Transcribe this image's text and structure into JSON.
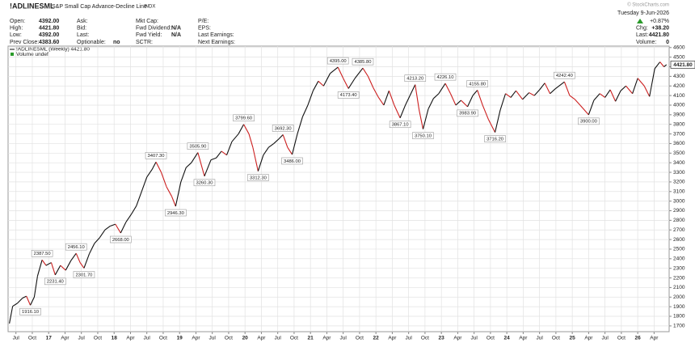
{
  "chart_data": {
    "type": "line",
    "symbol": "!ADLINESML",
    "title": "S&P Small Cap Advance-Decline Line",
    "exchange": "INDX",
    "watermark": "© StockCharts.com",
    "date": "Tuesday  9-Jun-2026",
    "change_pct": "+0.87%",
    "quote_columns": [
      [
        {
          "label": "Open:",
          "value": "4392.00"
        },
        {
          "label": "High:",
          "value": "4421.80"
        },
        {
          "label": "Low:",
          "value": "4392.00"
        },
        {
          "label": "Prev Close:",
          "value": "4383.60"
        }
      ],
      [
        {
          "label": "Ask:"
        },
        {
          "label": "Bid:"
        },
        {
          "label": "Last:"
        },
        {
          "label": "Optionable:",
          "value": "no"
        }
      ],
      [
        {
          "label": "Mkt Cap:"
        },
        {
          "label": "Fwd Dividend:",
          "value": "N/A"
        },
        {
          "label": "Fwd Yield:",
          "value": "N/A"
        },
        {
          "label": "SCTR:"
        }
      ],
      [
        {
          "label": "P/E:"
        },
        {
          "label": "EPS:"
        },
        {
          "label": "Last Earnings:"
        },
        {
          "label": "Next Earnings:"
        }
      ]
    ],
    "summary": [
      {
        "label": "Chg:",
        "value": "+38.20"
      },
      {
        "label": "Last:",
        "value": "4421.80"
      },
      {
        "label": "Volume:",
        "value": "0"
      }
    ],
    "volume_legend": "Volume undef",
    "last_tag": "4421.80",
    "xlim": [
      2016.38,
      2026.48
    ],
    "ylim": [
      1640,
      4615
    ],
    "grid": true,
    "xticks": [
      {
        "value": 2016.5,
        "label": "Jul"
      },
      {
        "value": 2016.75,
        "label": "Oct"
      },
      {
        "value": 2017,
        "label": "17"
      },
      {
        "value": 2017.25,
        "label": "Apr"
      },
      {
        "value": 2017.5,
        "label": "Jul"
      },
      {
        "value": 2017.75,
        "label": "Oct"
      },
      {
        "value": 2018,
        "label": "18"
      },
      {
        "value": 2018.25,
        "label": "Apr"
      },
      {
        "value": 2018.5,
        "label": "Jul"
      },
      {
        "value": 2018.75,
        "label": "Oct"
      },
      {
        "value": 2019,
        "label": "19"
      },
      {
        "value": 2019.25,
        "label": "Apr"
      },
      {
        "value": 2019.5,
        "label": "Jul"
      },
      {
        "value": 2019.75,
        "label": "Oct"
      },
      {
        "value": 2020,
        "label": "20"
      },
      {
        "value": 2020.25,
        "label": "Apr"
      },
      {
        "value": 2020.5,
        "label": "Jul"
      },
      {
        "value": 2020.75,
        "label": "Oct"
      },
      {
        "value": 2021,
        "label": "21"
      },
      {
        "value": 2021.25,
        "label": "Apr"
      },
      {
        "value": 2021.5,
        "label": "Jul"
      },
      {
        "value": 2021.75,
        "label": "Oct"
      },
      {
        "value": 2022,
        "label": "22"
      },
      {
        "value": 2022.25,
        "label": "Apr"
      },
      {
        "value": 2022.5,
        "label": "Jul"
      },
      {
        "value": 2022.75,
        "label": "Oct"
      },
      {
        "value": 2023,
        "label": "23"
      },
      {
        "value": 2023.25,
        "label": "Apr"
      },
      {
        "value": 2023.5,
        "label": "Jul"
      },
      {
        "value": 2023.75,
        "label": "Oct"
      },
      {
        "value": 2024,
        "label": "24"
      },
      {
        "value": 2024.25,
        "label": "Apr"
      },
      {
        "value": 2024.5,
        "label": "Jul"
      },
      {
        "value": 2024.75,
        "label": "Oct"
      },
      {
        "value": 2025,
        "label": "25"
      },
      {
        "value": 2025.25,
        "label": "Apr"
      },
      {
        "value": 2025.5,
        "label": "Jul"
      },
      {
        "value": 2025.75,
        "label": "Oct"
      },
      {
        "value": 2026,
        "label": "26"
      },
      {
        "value": 2026.25,
        "label": "Apr"
      }
    ],
    "yticks": [
      1700,
      1800,
      1900,
      2000,
      2100,
      2200,
      2300,
      2400,
      2500,
      2600,
      2700,
      2800,
      2900,
      3000,
      3100,
      3200,
      3300,
      3400,
      3500,
      3600,
      3700,
      3800,
      3900,
      4000,
      4100,
      4200,
      4300,
      4400,
      4500,
      4600
    ],
    "x": [
      2016.4,
      2016.45,
      2016.52,
      2016.6,
      2016.66,
      2016.72,
      2016.78,
      2016.83,
      2016.9,
      2016.96,
      2017.04,
      2017.1,
      2017.18,
      2017.26,
      2017.34,
      2017.42,
      2017.48,
      2017.54,
      2017.62,
      2017.7,
      2017.78,
      2017.86,
      2017.94,
      2018.02,
      2018.1,
      2018.18,
      2018.26,
      2018.34,
      2018.42,
      2018.5,
      2018.58,
      2018.64,
      2018.72,
      2018.8,
      2018.88,
      2018.94,
      2019.02,
      2019.1,
      2019.18,
      2019.28,
      2019.38,
      2019.48,
      2019.56,
      2019.64,
      2019.72,
      2019.8,
      2019.9,
      2019.98,
      2020.06,
      2020.12,
      2020.2,
      2020.28,
      2020.36,
      2020.44,
      2020.52,
      2020.58,
      2020.65,
      2020.72,
      2020.8,
      2020.88,
      2020.96,
      2021.04,
      2021.12,
      2021.2,
      2021.3,
      2021.42,
      2021.5,
      2021.58,
      2021.68,
      2021.8,
      2021.88,
      2021.96,
      2022.04,
      2022.12,
      2022.2,
      2022.28,
      2022.37,
      2022.45,
      2022.52,
      2022.6,
      2022.66,
      2022.72,
      2022.8,
      2022.88,
      2022.96,
      2023.06,
      2023.14,
      2023.22,
      2023.3,
      2023.4,
      2023.48,
      2023.55,
      2023.63,
      2023.72,
      2023.82,
      2023.9,
      2023.98,
      2024.06,
      2024.14,
      2024.24,
      2024.34,
      2024.42,
      2024.5,
      2024.58,
      2024.66,
      2024.74,
      2024.88,
      2024.96,
      2025.04,
      2025.12,
      2025.25,
      2025.33,
      2025.42,
      2025.5,
      2025.58,
      2025.66,
      2025.74,
      2025.82,
      2025.92,
      2026.0,
      2026.1,
      2026.18,
      2026.26,
      2026.34,
      2026.4,
      2026.44
    ],
    "series": [
      {
        "name": "!ADLINESML (Weekly) 4421.80",
        "up_color": "#111111",
        "down_color": "#cc1f1f",
        "values": [
          1725,
          1905,
          1935,
          1990,
          2010,
          1916.1,
          2000,
          2220,
          2387.5,
          2330,
          2360,
          2231.4,
          2330,
          2280,
          2380,
          2456.1,
          2360,
          2301.7,
          2450,
          2560,
          2620,
          2700,
          2740,
          2760,
          2668,
          2780,
          2860,
          2950,
          3100,
          3250,
          3330,
          3407.3,
          3300,
          3150,
          3050,
          2946.3,
          3200,
          3350,
          3400,
          3505.9,
          3260.3,
          3430,
          3450,
          3520,
          3480,
          3620,
          3700,
          3799.6,
          3700,
          3560,
          3312.3,
          3480,
          3560,
          3600,
          3650,
          3692.3,
          3560,
          3486,
          3700,
          3880,
          4000,
          4150,
          4250,
          4200,
          4330,
          4395,
          4280,
          4173.4,
          4280,
          4385.8,
          4300,
          4180,
          4080,
          4000,
          4150,
          4000,
          3867.1,
          4000,
          4100,
          4213.2,
          3950,
          3750.1,
          3960,
          4070,
          4120,
          4226.1,
          4120,
          4000,
          4050,
          3983.9,
          4100,
          4155.8,
          4000,
          3850,
          3716.2,
          3950,
          4120,
          4080,
          4150,
          4060,
          4130,
          4100,
          4160,
          4230,
          4120,
          4170,
          4242.4,
          4100,
          4060,
          4000,
          3900,
          4050,
          4120,
          4080,
          4160,
          4040,
          4150,
          4200,
          4120,
          4280,
          4200,
          4090,
          4380,
          4450,
          4400,
          4421.8
        ],
        "value_labels": [
          null,
          null,
          null,
          null,
          null,
          "1916.10",
          null,
          null,
          "2387.50",
          null,
          null,
          "2231.40",
          null,
          null,
          null,
          "2456.10",
          null,
          "2301.70",
          null,
          null,
          null,
          null,
          null,
          null,
          "2668.00",
          null,
          null,
          null,
          null,
          null,
          null,
          "3407.30",
          null,
          null,
          null,
          "2946.30",
          null,
          null,
          null,
          "3505.90",
          "3260.30",
          null,
          null,
          null,
          null,
          null,
          null,
          "3799.60",
          null,
          null,
          "3312.30",
          null,
          null,
          null,
          null,
          "3692.30",
          null,
          "3486.00",
          null,
          null,
          null,
          null,
          null,
          null,
          null,
          "4395.00",
          null,
          "4173.40",
          null,
          "4385.80",
          null,
          null,
          null,
          null,
          null,
          null,
          "3867.10",
          null,
          null,
          "4213.20",
          null,
          "3750.10",
          null,
          null,
          null,
          "4226.10",
          null,
          null,
          null,
          "3983.90",
          null,
          "4155.80",
          null,
          null,
          "3716.20",
          null,
          null,
          null,
          null,
          null,
          null,
          null,
          null,
          null,
          null,
          null,
          "4242.40",
          null,
          null,
          null,
          "3900.00",
          null,
          null,
          null,
          null,
          null,
          null,
          null,
          null,
          null,
          null,
          null,
          null,
          null,
          null,
          null
        ]
      }
    ]
  }
}
